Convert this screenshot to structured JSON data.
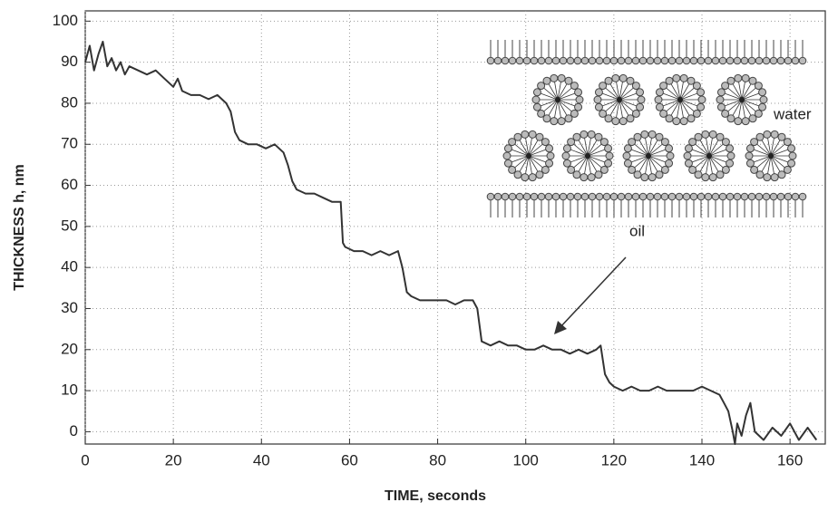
{
  "chart_data": {
    "type": "line",
    "x_label": "TIME, seconds",
    "y_label": "THICKNESS h, nm",
    "annotations": [
      "water",
      "oil"
    ],
    "color": "#333333",
    "grid": true,
    "xlim": [
      0,
      168
    ],
    "xticks": [
      0,
      20,
      40,
      60,
      80,
      100,
      120,
      140,
      160
    ],
    "ylim": [
      -3,
      102.5
    ],
    "yticks": [
      0,
      10,
      20,
      30,
      40,
      50,
      60,
      70,
      80,
      90,
      100
    ],
    "x": [
      0,
      1,
      2,
      3,
      4,
      5,
      6,
      7,
      8,
      9,
      10,
      12,
      14,
      16,
      18,
      20,
      21,
      22,
      24,
      26,
      28,
      30,
      32,
      33,
      34,
      35,
      37,
      39,
      41,
      43,
      45,
      46,
      47,
      48,
      50,
      52,
      54,
      56,
      58,
      58.5,
      59,
      61,
      63,
      65,
      67,
      69,
      71,
      72,
      73,
      74,
      76,
      78,
      80,
      82,
      84,
      86,
      88,
      89,
      90,
      92,
      94,
      96,
      98,
      100,
      102,
      104,
      106,
      108,
      110,
      112,
      114,
      116,
      117,
      118,
      119,
      120,
      122,
      124,
      126,
      128,
      130,
      132,
      134,
      136,
      138,
      140,
      142,
      144,
      145,
      146,
      147,
      147.5,
      148,
      149,
      150,
      151,
      152,
      154,
      156,
      158,
      160,
      162,
      164,
      166
    ],
    "values": [
      90,
      94,
      88,
      92,
      95,
      89,
      91,
      88,
      90,
      87,
      89,
      88,
      87,
      88,
      86,
      84,
      86,
      83,
      82,
      82,
      81,
      82,
      80,
      78,
      73,
      71,
      70,
      70,
      69,
      70,
      68,
      65,
      61,
      59,
      58,
      58,
      57,
      56,
      56,
      46,
      45,
      44,
      44,
      43,
      44,
      43,
      44,
      40,
      34,
      33,
      32,
      32,
      32,
      32,
      31,
      32,
      32,
      30,
      22,
      21,
      22,
      21,
      21,
      20,
      20,
      21,
      20,
      20,
      19,
      20,
      19,
      20,
      21,
      14,
      12,
      11,
      10,
      11,
      10,
      10,
      11,
      10,
      10,
      10,
      10,
      11,
      10,
      9,
      7,
      5,
      0,
      -3,
      2,
      -1,
      4,
      7,
      0,
      -2,
      1,
      -1,
      2,
      -2,
      1,
      -2
    ]
  }
}
